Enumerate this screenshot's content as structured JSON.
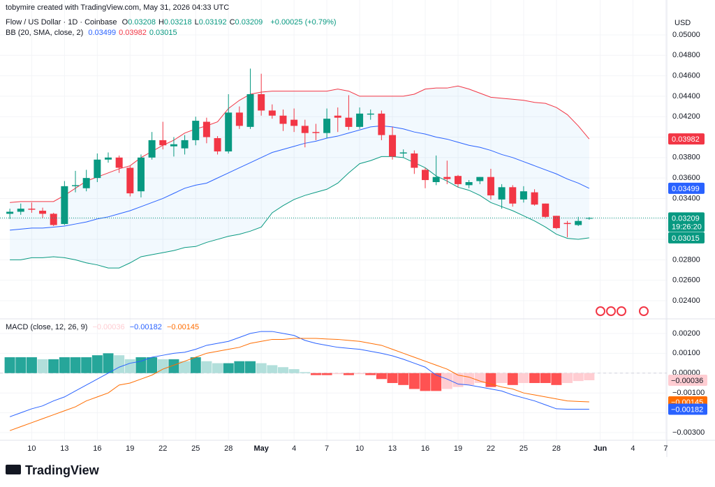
{
  "watermark": "tobymire created with TradingView.com, May 31, 2026 04:33 UTC",
  "logo": "TradingView",
  "chart_data": [
    {
      "type": "candlestick",
      "title": "Flow / US Dollar · 1D · Coinbase",
      "ohlc_letters": [
        "O",
        "H",
        "L",
        "C"
      ],
      "change_label": "+0.00025 (+0.79%)",
      "currency": "USD",
      "countdown": "19:26:20",
      "up_color": "#089981",
      "down_color": "#f23645",
      "open": [
        0.0325,
        0.0327,
        0.033,
        0.0328,
        0.0325,
        0.0315,
        0.0352,
        0.035,
        0.036,
        0.0378,
        0.038,
        0.037,
        0.0347,
        0.038,
        0.0397,
        0.0391,
        0.0389,
        0.0397,
        0.0415,
        0.0399,
        0.0386,
        0.0424,
        0.041,
        0.0442,
        0.0426,
        0.0421,
        0.0417,
        0.0411,
        0.0405,
        0.0404,
        0.0421,
        0.0419,
        0.041,
        0.0422,
        0.0423,
        0.0402,
        0.0384,
        0.0384,
        0.0368,
        0.0356,
        0.0361,
        0.0362,
        0.0353,
        0.0357,
        0.0361,
        0.0339,
        0.0351,
        0.0339,
        0.0346,
        0.0335,
        0.0323,
        0.0316,
        0.0314,
        0.03208
      ],
      "high": [
        0.033,
        0.0335,
        0.0336,
        0.0331,
        0.0326,
        0.0357,
        0.0367,
        0.0368,
        0.0384,
        0.0385,
        0.0382,
        0.0372,
        0.0383,
        0.0405,
        0.0415,
        0.04,
        0.0402,
        0.042,
        0.0419,
        0.0401,
        0.0442,
        0.043,
        0.0467,
        0.0462,
        0.0432,
        0.0427,
        0.0428,
        0.0417,
        0.0413,
        0.0428,
        0.0429,
        0.0441,
        0.0429,
        0.0427,
        0.0426,
        0.041,
        0.0388,
        0.0387,
        0.037,
        0.0382,
        0.0377,
        0.0363,
        0.0358,
        0.0361,
        0.0369,
        0.0354,
        0.0353,
        0.0352,
        0.0349,
        0.0335,
        0.0323,
        0.0318,
        0.0322,
        0.03218
      ],
      "low": [
        0.032,
        0.0324,
        0.0326,
        0.0321,
        0.0313,
        0.0314,
        0.0346,
        0.0347,
        0.0356,
        0.0375,
        0.0365,
        0.0342,
        0.0341,
        0.0378,
        0.0388,
        0.0381,
        0.0383,
        0.0392,
        0.0394,
        0.0383,
        0.0384,
        0.0408,
        0.0408,
        0.0421,
        0.0418,
        0.0406,
        0.0405,
        0.039,
        0.0397,
        0.0399,
        0.0405,
        0.0407,
        0.0408,
        0.0417,
        0.0397,
        0.0378,
        0.038,
        0.0364,
        0.035,
        0.0353,
        0.0354,
        0.0351,
        0.035,
        0.0354,
        0.0339,
        0.033,
        0.0332,
        0.0336,
        0.0333,
        0.0321,
        0.031,
        0.0302,
        0.0313,
        0.03192
      ],
      "close": [
        0.0327,
        0.033,
        0.0329,
        0.0325,
        0.0314,
        0.0352,
        0.0353,
        0.036,
        0.0378,
        0.038,
        0.037,
        0.0345,
        0.038,
        0.0397,
        0.0392,
        0.0393,
        0.0397,
        0.0416,
        0.04,
        0.0386,
        0.0424,
        0.0411,
        0.0442,
        0.0426,
        0.0421,
        0.0413,
        0.0411,
        0.0404,
        0.0404,
        0.0418,
        0.0419,
        0.041,
        0.0423,
        0.0423,
        0.0402,
        0.0381,
        0.0385,
        0.037,
        0.0358,
        0.0361,
        0.0359,
        0.0354,
        0.0356,
        0.0361,
        0.0343,
        0.0351,
        0.0335,
        0.0347,
        0.0334,
        0.0322,
        0.0311,
        0.0315,
        0.0318,
        0.03209
      ],
      "indicator": "BB (20, SMA, close, 2)",
      "band_fill": "rgba(33,150,243,0.06)",
      "series": [
        {
          "color": "#2962ff",
          "values": [
            0.0309,
            0.031,
            0.0311,
            0.0311,
            0.0312,
            0.0313,
            0.0315,
            0.0317,
            0.032,
            0.0322,
            0.0325,
            0.0328,
            0.0332,
            0.0336,
            0.034,
            0.0345,
            0.035,
            0.0353,
            0.0355,
            0.036,
            0.0365,
            0.037,
            0.0375,
            0.038,
            0.0385,
            0.0388,
            0.0391,
            0.0394,
            0.0396,
            0.0399,
            0.0401,
            0.0404,
            0.0407,
            0.041,
            0.0411,
            0.041,
            0.0408,
            0.0405,
            0.0403,
            0.04,
            0.0398,
            0.0395,
            0.0392,
            0.039,
            0.0387,
            0.0383,
            0.038,
            0.0376,
            0.0372,
            0.0368,
            0.0364,
            0.0359,
            0.0355,
            0.03499
          ]
        },
        {
          "color": "#f23645",
          "values": [
            0.0336,
            0.0337,
            0.0337,
            0.0337,
            0.0337,
            0.0343,
            0.035,
            0.0357,
            0.0361,
            0.0365,
            0.0369,
            0.0372,
            0.038,
            0.0386,
            0.0392,
            0.0397,
            0.0404,
            0.0408,
            0.0411,
            0.0415,
            0.0428,
            0.0436,
            0.0442,
            0.0444,
            0.0445,
            0.0445,
            0.0445,
            0.0445,
            0.0445,
            0.0445,
            0.0447,
            0.0445,
            0.044,
            0.044,
            0.044,
            0.044,
            0.044,
            0.0442,
            0.0447,
            0.0448,
            0.0448,
            0.045,
            0.0447,
            0.0443,
            0.0439,
            0.0438,
            0.0437,
            0.0436,
            0.0434,
            0.0433,
            0.0429,
            0.0422,
            0.0411,
            0.03982
          ]
        },
        {
          "color": "#089981",
          "values": [
            0.028,
            0.028,
            0.0282,
            0.0282,
            0.0283,
            0.0282,
            0.028,
            0.0277,
            0.0275,
            0.0272,
            0.0272,
            0.0277,
            0.0283,
            0.0285,
            0.0287,
            0.0289,
            0.0292,
            0.0293,
            0.0297,
            0.03,
            0.0303,
            0.0305,
            0.0308,
            0.0312,
            0.0326,
            0.0333,
            0.0339,
            0.0343,
            0.0346,
            0.0349,
            0.0355,
            0.0365,
            0.0374,
            0.0377,
            0.0381,
            0.0381,
            0.038,
            0.0375,
            0.037,
            0.0362,
            0.0357,
            0.0351,
            0.0348,
            0.0343,
            0.0336,
            0.0332,
            0.0328,
            0.0323,
            0.0318,
            0.0312,
            0.0305,
            0.0301,
            0.03,
            0.03015
          ]
        }
      ],
      "xlim": [
        -0.9,
        60.1
      ],
      "ylim": [
        0.02236,
        0.05191
      ],
      "grid": true,
      "yticks": [
        {
          "value": 0.024,
          "label": "0.02400"
        },
        {
          "value": 0.026,
          "label": "0.02600"
        },
        {
          "value": 0.028,
          "label": "0.02800"
        },
        {
          "value": 0.03,
          "label": "0.03000"
        },
        {
          "value": 0.032,
          "label": "0.03200"
        },
        {
          "value": 0.034,
          "label": "0.03400"
        },
        {
          "value": 0.036,
          "label": "0.03600"
        },
        {
          "value": 0.038,
          "label": "0.03800"
        },
        {
          "value": 0.04,
          "label": "0.04000"
        },
        {
          "value": 0.042,
          "label": "0.04200"
        },
        {
          "value": 0.044,
          "label": "0.04400"
        },
        {
          "value": 0.046,
          "label": "0.04600"
        },
        {
          "value": 0.048,
          "label": "0.04800"
        },
        {
          "value": 0.05,
          "label": "0.05000"
        }
      ]
    },
    {
      "type": "macd",
      "title": "MACD (close, 12, 26, 9)",
      "histogram": {
        "colors": [
          "#26a69a",
          "#b2dfdb",
          "#ff5252",
          "#ffcdd2"
        ],
        "last_label": "−0.00036",
        "values": [
          0.0008,
          0.0008,
          0.0008,
          0.0007,
          0.0007,
          0.0008,
          0.0008,
          0.0008,
          0.0009,
          0.001,
          0.0009,
          0.0007,
          0.0008,
          0.0008,
          0.0007,
          0.0007,
          0.0006,
          0.0008,
          0.0006,
          0.0005,
          0.0005,
          0.0006,
          0.0006,
          0.0005,
          0.0004,
          0.0003,
          0.0002,
          5e-05,
          -0.0001,
          -0.0001,
          -5e-05,
          -0.0001,
          -5e-05,
          -0.0001,
          -0.0003,
          -0.0005,
          -0.0006,
          -0.0008,
          -0.0009,
          -0.0009,
          -0.0008,
          -0.0007,
          -0.0006,
          -0.0005,
          -0.0007,
          -0.0005,
          -0.0006,
          -0.0005,
          -0.0005,
          -0.0005,
          -0.0006,
          -0.0005,
          -0.0004,
          -0.00036
        ]
      },
      "series": [
        {
          "color": "#2962ff",
          "last_label": "−0.00182",
          "values": [
            -0.0022,
            -0.002,
            -0.0018,
            -0.00165,
            -0.0014,
            -0.0012,
            -0.0009,
            -0.0006,
            -0.0003,
            0,
            0.0003,
            0.0005,
            0.0006,
            0.0008,
            0.0009,
            0.001,
            0.00105,
            0.0012,
            0.0014,
            0.0015,
            0.0016,
            0.0018,
            0.002,
            0.0021,
            0.0021,
            0.002,
            0.0019,
            0.00165,
            0.0015,
            0.0014,
            0.0013,
            0.00125,
            0.0012,
            0.0011,
            0.001,
            0.00087,
            0.0007,
            0.0005,
            0.0003,
            -0.0001,
            -0.0003,
            -0.00055,
            -0.0006,
            -0.0007,
            -0.0008,
            -0.0009,
            -0.0011,
            -0.00125,
            -0.0014,
            -0.0016,
            -0.0018,
            -0.00182,
            -0.00182,
            -0.00182
          ]
        },
        {
          "color": "#ff6d00",
          "last_label": "−0.00145",
          "values": [
            -0.0029,
            -0.0027,
            -0.0025,
            -0.0023,
            -0.0021,
            -0.0019,
            -0.0017,
            -0.0014,
            -0.0012,
            -0.001,
            -0.0006,
            -0.0005,
            -0.0003,
            -0.0001,
            0.0002,
            0.0004,
            0.0006,
            0.0008,
            0.001,
            0.0011,
            0.0012,
            0.0013,
            0.0015,
            0.0016,
            0.0017,
            0.0017,
            0.00175,
            0.00175,
            0.00175,
            0.00172,
            0.0017,
            0.00165,
            0.0016,
            0.0015,
            0.0014,
            0.0012,
            0.001,
            0.0008,
            0.0006,
            0.0004,
            0.0002,
            -0.0001,
            -0.0002,
            -0.0004,
            -0.00055,
            -0.0007,
            -0.0008,
            -0.001,
            -0.0011,
            -0.0012,
            -0.0013,
            -0.0014,
            -0.00143,
            -0.00145
          ]
        }
      ],
      "xlim": [
        -0.9,
        60.1
      ],
      "ylim": [
        -0.00335,
        0.00263
      ],
      "grid": true,
      "yticks": [
        {
          "value": -0.003,
          "label": "−0.00300"
        },
        {
          "value": -0.002,
          "label": "−0.00200"
        },
        {
          "value": -0.001,
          "label": "−0.00100"
        },
        {
          "value": 0,
          "label": "0.00000"
        },
        {
          "value": 0.001,
          "label": "0.00100"
        },
        {
          "value": 0.002,
          "label": "0.00200"
        }
      ],
      "xticks": [
        {
          "value": 2,
          "label": "10"
        },
        {
          "value": 5,
          "label": "13"
        },
        {
          "value": 8,
          "label": "16"
        },
        {
          "value": 11,
          "label": "19"
        },
        {
          "value": 14,
          "label": "22"
        },
        {
          "value": 17,
          "label": "25"
        },
        {
          "value": 20,
          "label": "28"
        },
        {
          "value": 23,
          "label": "May"
        },
        {
          "value": 26,
          "label": "4"
        },
        {
          "value": 29,
          "label": "7"
        },
        {
          "value": 32,
          "label": "10"
        },
        {
          "value": 35,
          "label": "13"
        },
        {
          "value": 38,
          "label": "16"
        },
        {
          "value": 41,
          "label": "19"
        },
        {
          "value": 44,
          "label": "22"
        },
        {
          "value": 47,
          "label": "25"
        },
        {
          "value": 50,
          "label": "28"
        },
        {
          "value": 54,
          "label": "Jun"
        },
        {
          "value": 57,
          "label": "4"
        },
        {
          "value": 60,
          "label": "7"
        }
      ]
    }
  ]
}
